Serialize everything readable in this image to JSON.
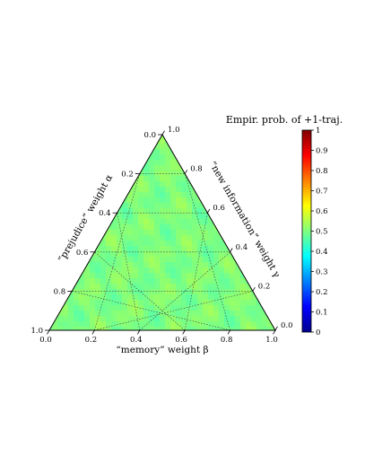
{
  "chart_data": {
    "type": "heatmap",
    "layout": "ternary",
    "title": "",
    "colorbar": {
      "label": "Empir. prob. of +1-traj.",
      "range": [
        0,
        1
      ],
      "ticks": [
        "0",
        "0.1",
        "0.2",
        "0.3",
        "0.4",
        "0.5",
        "0.6",
        "0.7",
        "0.8",
        "0.9",
        "1"
      ],
      "colormap": "jet"
    },
    "axes": {
      "alpha": {
        "label": "“prejudice” weight α",
        "ticks": [
          "0.0",
          "0.2",
          "0.4",
          "0.6",
          "0.8",
          "1.0"
        ]
      },
      "beta": {
        "label": "“memory” weight β",
        "ticks": [
          "0.0",
          "0.2",
          "0.4",
          "0.6",
          "0.8",
          "1.0"
        ]
      },
      "gamma": {
        "label": "“new information” weight γ",
        "ticks": [
          "1.0",
          "0.8",
          "0.6",
          "0.4",
          "0.2",
          "0.0"
        ]
      }
    },
    "grid": true,
    "field_value": 0.5,
    "field_variation": [
      0.46,
      0.54
    ]
  }
}
